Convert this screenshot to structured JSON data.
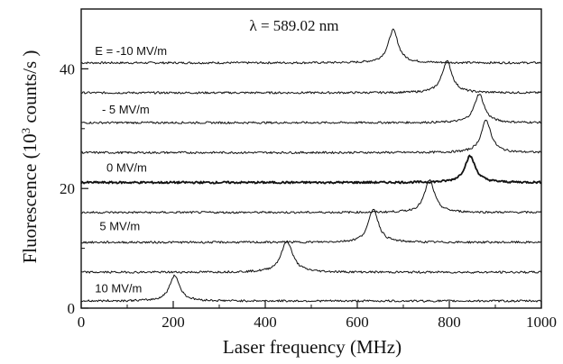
{
  "chart_data": {
    "type": "line",
    "title": "λ = 589.02 nm",
    "xlabel": "Laser frequency (MHz)",
    "ylabel_parts": [
      "Fluorescence (10",
      "3",
      " counts/s )"
    ],
    "xlim": [
      0,
      1000
    ],
    "ylim": [
      0,
      50
    ],
    "xticks": [
      0,
      200,
      400,
      600,
      800,
      1000
    ],
    "xtick_labels": [
      "0",
      "200",
      "400",
      "600",
      "800",
      "1000"
    ],
    "yticks": [
      0,
      20,
      40
    ],
    "ytick_labels": [
      "0",
      "20",
      "40"
    ],
    "annotations": [
      {
        "text": "E = -10 MV/m",
        "x": 30,
        "y": 42.3
      },
      {
        "text": "- 5 MV/m",
        "x": 45,
        "y": 32.5
      },
      {
        "text": "0  MV/m",
        "x": 55,
        "y": 22.8
      },
      {
        "text": "5 MV/m",
        "x": 40,
        "y": 13.0
      },
      {
        "text": "10 MV/m",
        "x": 30,
        "y": 2.6
      }
    ],
    "series": [
      {
        "baseline": 41.0,
        "peak_x": 678,
        "peak_height": 5.5,
        "width": 13,
        "linewidth": 1.0
      },
      {
        "baseline": 36.0,
        "peak_x": 795,
        "peak_height": 5.3,
        "width": 13,
        "linewidth": 1.0
      },
      {
        "baseline": 31.0,
        "peak_x": 865,
        "peak_height": 4.8,
        "width": 13,
        "linewidth": 1.0
      },
      {
        "baseline": 26.0,
        "peak_x": 880,
        "peak_height": 5.4,
        "width": 13,
        "linewidth": 1.0
      },
      {
        "baseline": 21.0,
        "peak_x": 845,
        "peak_height": 4.4,
        "width": 14,
        "linewidth": 1.8
      },
      {
        "baseline": 16.0,
        "peak_x": 757,
        "peak_height": 5.4,
        "width": 13,
        "linewidth": 1.0
      },
      {
        "baseline": 11.0,
        "peak_x": 635,
        "peak_height": 5.6,
        "width": 13,
        "linewidth": 1.0
      },
      {
        "baseline": 6.0,
        "peak_x": 447,
        "peak_height": 5.2,
        "width": 15,
        "linewidth": 1.0
      },
      {
        "baseline": 1.2,
        "peak_x": 203,
        "peak_height": 4.3,
        "width": 13,
        "linewidth": 1.0
      }
    ],
    "grid": false,
    "legend": "none"
  }
}
